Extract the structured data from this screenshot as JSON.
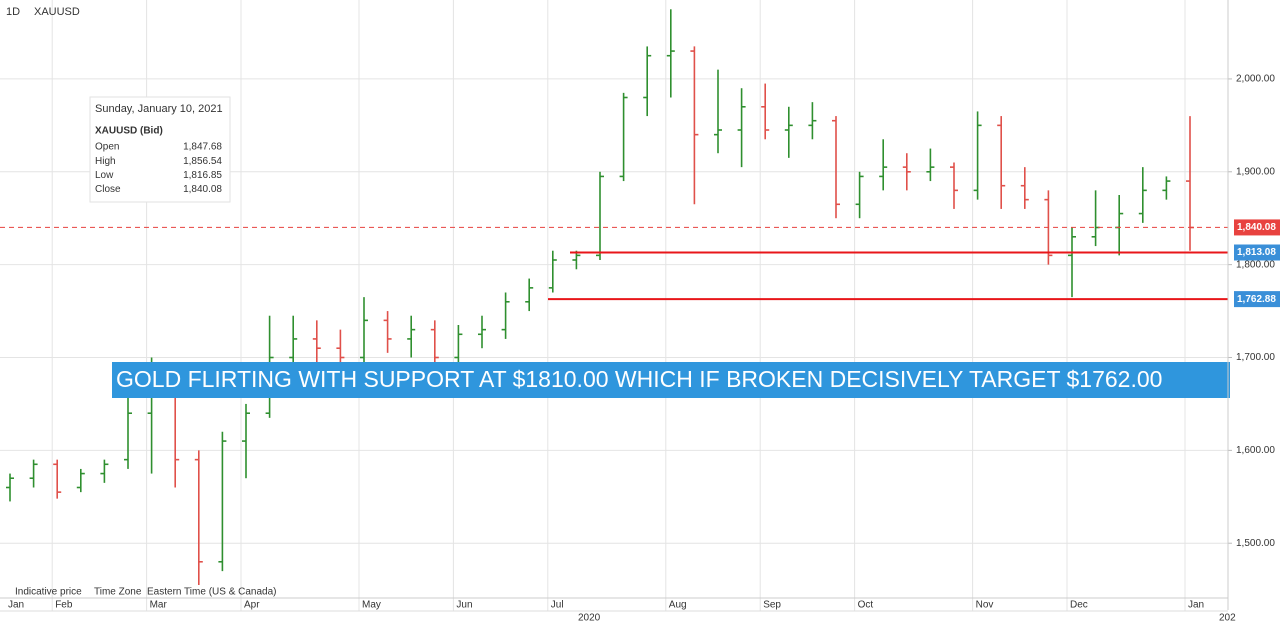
{
  "chart_data": {
    "type": "ohlc",
    "timeframe": "1D",
    "title": "XAUUSD",
    "info": {
      "date": "Sunday, January 10, 2021",
      "symbol": "XAUUSD (Bid)",
      "rows": [
        [
          "Open",
          "1,847.68"
        ],
        [
          "High",
          "1,856.54"
        ],
        [
          "Low",
          "1,816.85"
        ],
        [
          "Close",
          "1,840.08"
        ]
      ]
    },
    "annotation": "GOLD FLIRTING WITH SUPPORT AT $1810.00 WHICH IF BROKEN DECISIVELY TARGET $1762.00",
    "footer": [
      "Indicative price",
      "Time Zone",
      "Eastern Time (US & Canada)"
    ],
    "years": [
      "2020",
      "202"
    ],
    "categories": [
      "Jan",
      null,
      "Feb",
      null,
      null,
      null,
      "Mar",
      null,
      null,
      null,
      "Apr",
      null,
      null,
      null,
      null,
      "May",
      null,
      null,
      null,
      "Jun",
      null,
      null,
      null,
      "Jul",
      null,
      null,
      null,
      null,
      "Aug",
      null,
      null,
      null,
      "Sep",
      null,
      null,
      null,
      "Oct",
      null,
      null,
      null,
      null,
      "Nov",
      null,
      null,
      null,
      "Dec",
      null,
      null,
      null,
      null,
      "Jan"
    ],
    "open": [
      1560,
      1570,
      1585,
      1560,
      1575,
      1590,
      1640,
      1680,
      1590,
      1480,
      1610,
      1640,
      1700,
      1720,
      1710,
      1700,
      1740,
      1720,
      1730,
      1700,
      1725,
      1730,
      1760,
      1775,
      1805,
      1810,
      1895,
      1980,
      2025,
      2030,
      1940,
      1945,
      1970,
      1945,
      1950,
      1955,
      1865,
      1895,
      1905,
      1900,
      1905,
      1880,
      1950,
      1885,
      1870,
      1810,
      1830,
      1840,
      1855,
      1880,
      1890
    ],
    "high": [
      1575,
      1590,
      1590,
      1580,
      1590,
      1690,
      1700,
      1690,
      1600,
      1620,
      1650,
      1745,
      1745,
      1740,
      1730,
      1765,
      1750,
      1745,
      1740,
      1735,
      1745,
      1770,
      1785,
      1815,
      1815,
      1900,
      1985,
      2035,
      2075,
      2035,
      2010,
      1990,
      1995,
      1970,
      1975,
      1960,
      1900,
      1935,
      1920,
      1925,
      1910,
      1965,
      1960,
      1905,
      1880,
      1840,
      1880,
      1875,
      1905,
      1895,
      1960
    ],
    "low": [
      1545,
      1560,
      1548,
      1555,
      1565,
      1580,
      1575,
      1560,
      1455,
      1470,
      1570,
      1635,
      1680,
      1690,
      1680,
      1695,
      1705,
      1700,
      1690,
      1690,
      1710,
      1720,
      1750,
      1770,
      1795,
      1805,
      1890,
      1960,
      1980,
      1865,
      1920,
      1905,
      1935,
      1915,
      1935,
      1850,
      1850,
      1880,
      1880,
      1890,
      1860,
      1870,
      1860,
      1860,
      1800,
      1765,
      1820,
      1810,
      1845,
      1870,
      1815
    ],
    "close": [
      1570,
      1585,
      1555,
      1575,
      1585,
      1640,
      1680,
      1590,
      1480,
      1610,
      1640,
      1700,
      1720,
      1710,
      1700,
      1740,
      1720,
      1730,
      1700,
      1725,
      1730,
      1760,
      1775,
      1805,
      1810,
      1895,
      1980,
      2025,
      2030,
      1940,
      1945,
      1970,
      1945,
      1950,
      1955,
      1865,
      1895,
      1905,
      1900,
      1905,
      1880,
      1950,
      1885,
      1870,
      1810,
      1830,
      1840,
      1855,
      1880,
      1890,
      1840
    ],
    "up_color": "#2f8f2f",
    "down_color": "#e0504a",
    "ylim": [
      1441,
      2085
    ],
    "yticks": [
      {
        "value": 1500,
        "label": "1,500.00"
      },
      {
        "value": 1600,
        "label": "1,600.00"
      },
      {
        "value": 1700,
        "label": "1,700.00"
      },
      {
        "value": 1800,
        "label": "1,800.00"
      },
      {
        "value": 1900,
        "label": "1,900.00"
      },
      {
        "value": 2000,
        "label": "2,000.00"
      }
    ],
    "grid": true,
    "levels": [
      {
        "value": 1840.08,
        "label": "1,840.08",
        "style": "dashed",
        "color": "#e8423f",
        "tag_color": "#e8423f"
      },
      {
        "value": 1813.08,
        "label": "1,813.08",
        "style": "solid",
        "color": "#e8161a",
        "tag_color": "#3a8fd8"
      },
      {
        "value": 1762.88,
        "label": "1,762.88",
        "style": "solid",
        "color": "#e8161a",
        "tag_color": "#3a8fd8"
      }
    ]
  }
}
